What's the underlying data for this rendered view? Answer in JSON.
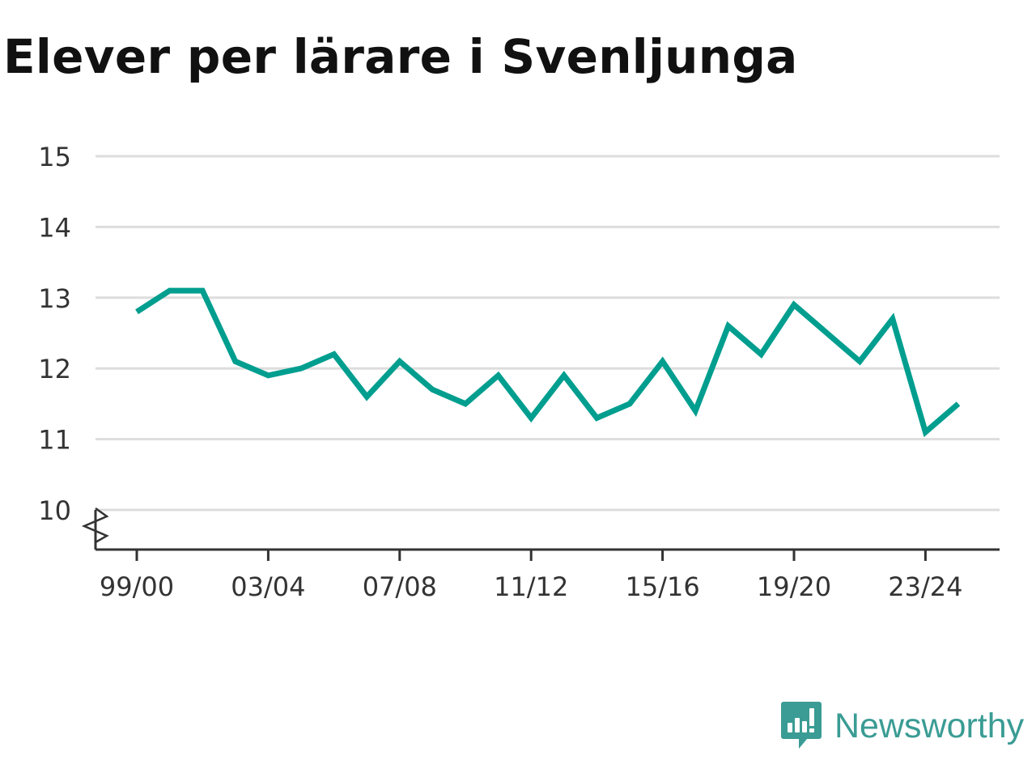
{
  "title": "Elever per lärare i Svenljunga",
  "brand": {
    "name": "Newsworthy",
    "logo_icon": "bar-chart-speech-bubble-icon",
    "color": "#3a9c94"
  },
  "chart_data": {
    "type": "line",
    "title": "Elever per lärare i Svenljunga",
    "xlabel": "",
    "ylabel": "",
    "x": [
      "99/00",
      "00/01",
      "01/02",
      "02/03",
      "03/04",
      "04/05",
      "05/06",
      "06/07",
      "07/08",
      "08/09",
      "09/10",
      "10/11",
      "11/12",
      "12/13",
      "13/14",
      "14/15",
      "15/16",
      "16/17",
      "17/18",
      "18/19",
      "19/20",
      "20/21",
      "21/22",
      "22/23",
      "23/24",
      "24/25"
    ],
    "x_tick_labels": [
      "99/00",
      "03/04",
      "07/08",
      "11/12",
      "15/16",
      "19/20",
      "23/24"
    ],
    "series": [
      {
        "values": [
          12.8,
          13.1,
          13.1,
          12.1,
          11.9,
          12.0,
          12.2,
          11.6,
          12.1,
          11.7,
          11.5,
          11.9,
          11.3,
          11.9,
          11.3,
          11.5,
          12.1,
          11.4,
          12.6,
          12.2,
          12.9,
          12.5,
          12.1,
          12.7,
          11.1,
          11.5
        ],
        "color": "#009e8f"
      }
    ],
    "yticks": [
      10,
      11,
      12,
      13,
      14,
      15
    ],
    "ylim": [
      10,
      15
    ],
    "y_axis_break": true,
    "grid": true,
    "legend": "none"
  }
}
